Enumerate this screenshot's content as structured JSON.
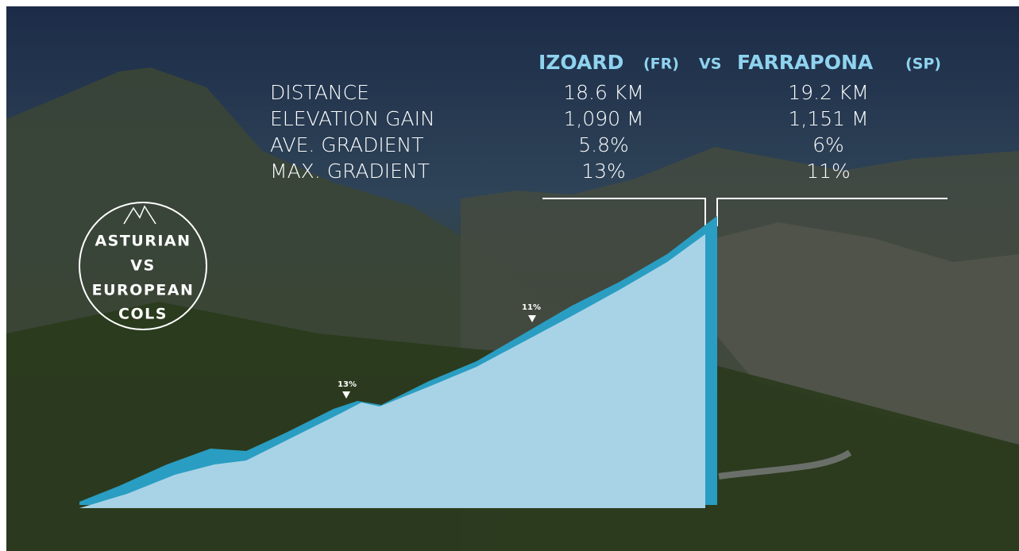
{
  "header": {
    "left_name": "IZOARD",
    "left_country": "(FR)",
    "vs": "VS",
    "right_name": "FARRAPONA",
    "right_country": "(SP)"
  },
  "table": {
    "rows": [
      [
        "DISTANCE",
        "18.6 KM",
        "19.2 KM"
      ],
      [
        "ELEVATION GAIN",
        "1,090 M",
        "1,151 M"
      ],
      [
        "AVE. GRADIENT",
        "5.8%",
        "6%"
      ],
      [
        "MAX. GRADIENT",
        "13%",
        "11%"
      ]
    ]
  },
  "badge": {
    "lines": [
      "ASTURIAN",
      "VS",
      "EUROPEAN",
      "COLS"
    ]
  },
  "markers": [
    "13%",
    "11%"
  ]
}
